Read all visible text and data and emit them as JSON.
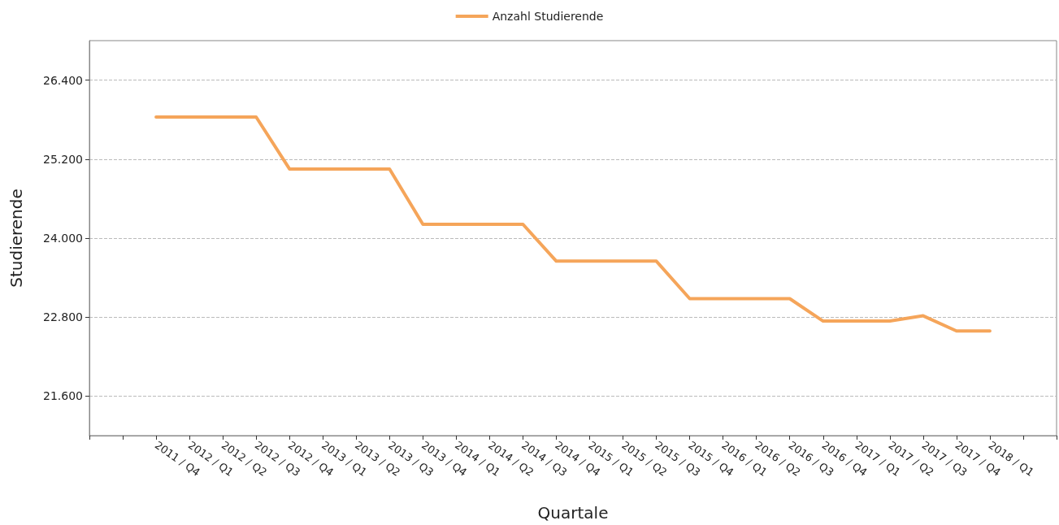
{
  "chart_data": {
    "type": "line",
    "xlabel": "Quartale",
    "ylabel": "Studierende",
    "categories": [
      "2011 / Q4",
      "2012 / Q1",
      "2012 / Q2",
      "2012 / Q3",
      "2012 / Q4",
      "2013 / Q1",
      "2013 / Q2",
      "2013 / Q3",
      "2013 / Q4",
      "2014 / Q1",
      "2014 / Q2",
      "2014 / Q3",
      "2014 / Q4",
      "2015 / Q1",
      "2015 / Q2",
      "2015 / Q3",
      "2015 / Q4",
      "2016 / Q1",
      "2016 / Q2",
      "2016 / Q3",
      "2016 / Q4",
      "2017 / Q1",
      "2017 / Q2",
      "2017 / Q3",
      "2017 / Q4",
      "2018 / Q1"
    ],
    "series": [
      {
        "name": "Anzahl Studierende",
        "color": "#f5a55a",
        "values": [
          25840,
          25840,
          25840,
          25840,
          25050,
          25050,
          25050,
          25050,
          24210,
          24210,
          24210,
          24210,
          23650,
          23650,
          23650,
          23650,
          23080,
          23080,
          23080,
          23080,
          22740,
          22740,
          22740,
          22820,
          22590,
          22590
        ]
      }
    ],
    "ylim": [
      21000,
      27000
    ],
    "yticks": [
      {
        "value": 21600,
        "label": "21.600"
      },
      {
        "value": 22800,
        "label": "22.800"
      },
      {
        "value": 24000,
        "label": "24.000"
      },
      {
        "value": 25200,
        "label": "25.200"
      },
      {
        "value": 26400,
        "label": "26.400"
      }
    ],
    "grid": "y",
    "legend": "top",
    "marker": "none",
    "line_style": "solid"
  }
}
